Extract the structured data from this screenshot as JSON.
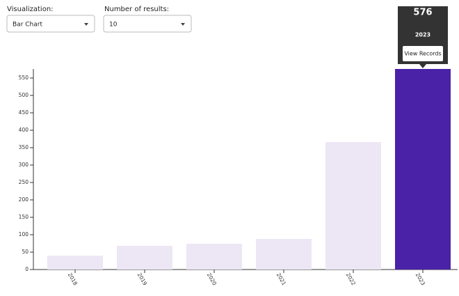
{
  "controls": {
    "visualization_label": "Visualization:",
    "visualization_value": "Bar Chart",
    "results_label": "Number of results:",
    "results_value": 10
  },
  "chart_data": {
    "type": "bar",
    "categories": [
      "2018",
      "2019",
      "2020",
      "2021",
      "2022",
      "2023"
    ],
    "values": [
      40,
      68,
      74,
      88,
      366,
      576
    ],
    "colors": [
      "#ece6f5",
      "#ece6f5",
      "#ece6f5",
      "#ece6f5",
      "#ece6f5",
      "#4a22a8"
    ],
    "ylim": [
      0,
      576
    ],
    "yticks": [
      0,
      50,
      100,
      150,
      200,
      250,
      300,
      350,
      400,
      450,
      500,
      550
    ],
    "tooltip": {
      "index": 5,
      "button": "View Records"
    }
  }
}
